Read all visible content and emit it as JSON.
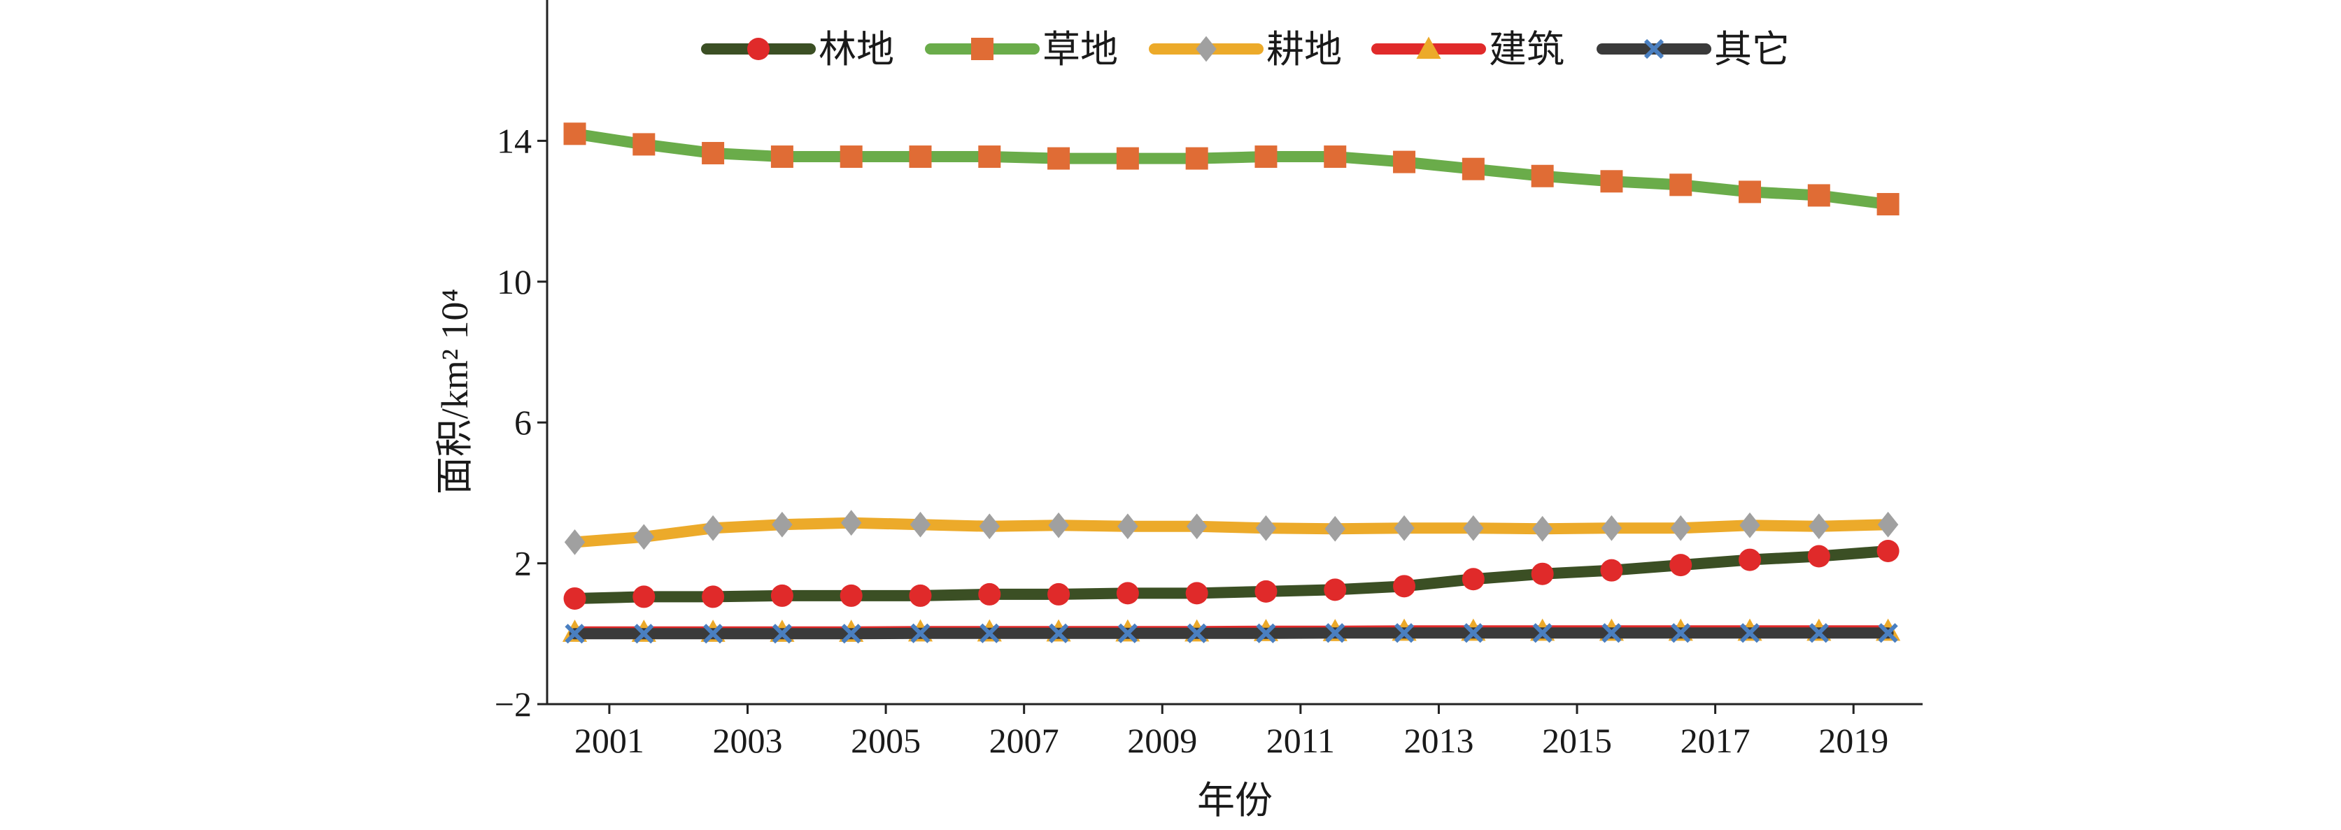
{
  "chart_data": {
    "type": "line",
    "xlabel": "年份",
    "ylabel": "面积/km² 10⁴",
    "x": [
      2000.5,
      2001.5,
      2002.5,
      2003.5,
      2004.5,
      2005.5,
      2006.5,
      2007.5,
      2008.5,
      2009.5,
      2010.5,
      2011.5,
      2012.5,
      2013.5,
      2014.5,
      2015.5,
      2016.5,
      2017.5,
      2018.5,
      2019.5
    ],
    "xticks": [
      "2001",
      "2003",
      "2005",
      "2007",
      "2009",
      "2011",
      "2013",
      "2015",
      "2017",
      "2019"
    ],
    "xtick_values": [
      2001,
      2003,
      2005,
      2007,
      2009,
      2011,
      2013,
      2015,
      2017,
      2019
    ],
    "xlim": [
      2000.1,
      2020.0
    ],
    "yticks": [
      "−2",
      "2",
      "6",
      "10",
      "14"
    ],
    "ytick_values": [
      -2,
      2,
      6,
      10,
      14
    ],
    "ylim": [
      -2,
      18
    ],
    "grid": false,
    "legend_position": "top",
    "series": [
      {
        "name": "林地",
        "line_color": "#3b4f24",
        "marker": "circle",
        "marker_color": "#e02a2a",
        "values": [
          1.0,
          1.05,
          1.05,
          1.08,
          1.08,
          1.08,
          1.12,
          1.12,
          1.15,
          1.15,
          1.2,
          1.25,
          1.35,
          1.55,
          1.7,
          1.8,
          1.95,
          2.1,
          2.2,
          2.35
        ]
      },
      {
        "name": "草地",
        "line_color": "#6aac4a",
        "marker": "square",
        "marker_color": "#e06c35",
        "values": [
          14.2,
          13.9,
          13.65,
          13.55,
          13.55,
          13.55,
          13.55,
          13.5,
          13.5,
          13.5,
          13.55,
          13.55,
          13.4,
          13.2,
          13.0,
          12.85,
          12.75,
          12.55,
          12.45,
          12.2
        ]
      },
      {
        "name": "耕地",
        "line_color": "#ecaa2a",
        "marker": "diamond",
        "marker_color": "#a0a0a0",
        "values": [
          2.6,
          2.75,
          3.0,
          3.1,
          3.15,
          3.1,
          3.05,
          3.08,
          3.05,
          3.05,
          3.0,
          2.98,
          3.0,
          3.0,
          2.98,
          3.0,
          3.0,
          3.08,
          3.05,
          3.1
        ]
      },
      {
        "name": "建筑",
        "line_color": "#e02a2a",
        "marker": "triangle",
        "marker_color": "#ecaa2a",
        "values": [
          0.05,
          0.05,
          0.05,
          0.05,
          0.05,
          0.06,
          0.06,
          0.06,
          0.06,
          0.06,
          0.07,
          0.07,
          0.08,
          0.08,
          0.08,
          0.08,
          0.08,
          0.08,
          0.08,
          0.08
        ]
      },
      {
        "name": "其它",
        "line_color": "#3a3a3a",
        "marker": "x",
        "marker_color": "#4a7fc0",
        "values": [
          0.0,
          0.0,
          0.0,
          0.0,
          0.0,
          0.01,
          0.01,
          0.01,
          0.01,
          0.01,
          0.01,
          0.02,
          0.02,
          0.02,
          0.02,
          0.02,
          0.02,
          0.02,
          0.02,
          0.02
        ]
      }
    ]
  }
}
